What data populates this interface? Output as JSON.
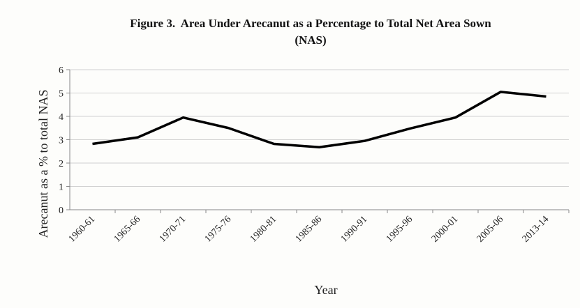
{
  "chart_data": {
    "type": "line",
    "title": "Figure 3.  Area Under Arecanut as a Percentage to Total Net Area Sown (NAS)",
    "x_label": "Year",
    "y_label": "Arecanut as a % to total NAS",
    "categories": [
      "1960-61",
      "1965-66",
      "1970-71",
      "1975-76",
      "1980-81",
      "1985-86",
      "1990-91",
      "1995-96",
      "2000-01",
      "2005-06",
      "2013-14"
    ],
    "series": [
      {
        "color": "#000000",
        "values": [
          2.82,
          3.1,
          3.95,
          3.5,
          2.82,
          2.68,
          2.95,
          3.48,
          3.95,
          5.05,
          4.85
        ]
      }
    ],
    "ylim": [
      0,
      6
    ],
    "yticks": [
      0,
      1,
      2,
      3,
      4,
      5,
      6
    ],
    "grid": true
  }
}
